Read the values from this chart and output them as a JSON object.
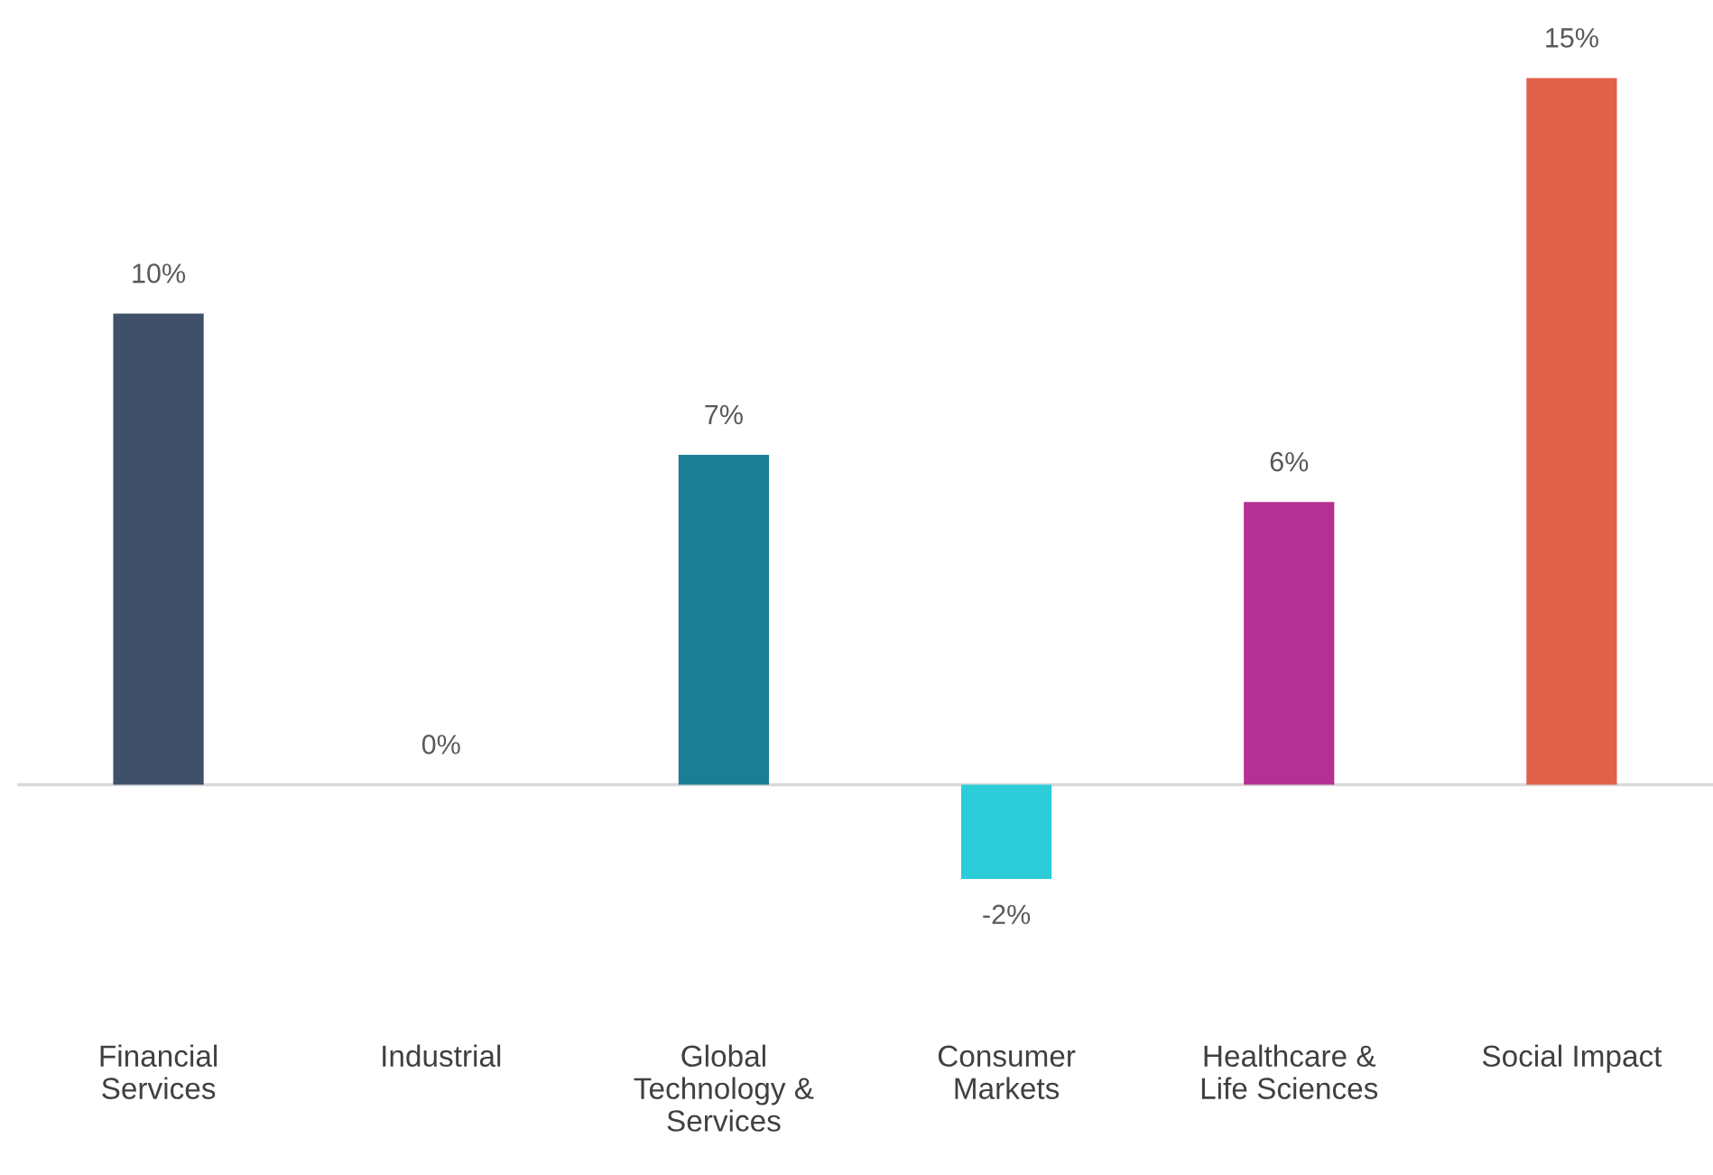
{
  "chart_data": {
    "type": "bar",
    "categories": [
      "Financial\nServices",
      "Industrial",
      "Global\nTechnology &\nServices",
      "Consumer\nMarkets",
      "Healthcare &\nLife Sciences",
      "Social Impact"
    ],
    "values": [
      10,
      0,
      7,
      -2,
      6,
      15
    ],
    "colors": [
      "#3f5068",
      "#1b7e94",
      "#1b7e94",
      "#2ccdd9",
      "#b53093",
      "#e0604a"
    ],
    "value_labels": [
      "10%",
      "0%",
      "7%",
      "-2%",
      "6%",
      "15%"
    ],
    "tick_labels": "x",
    "grid": false,
    "legend": false
  }
}
